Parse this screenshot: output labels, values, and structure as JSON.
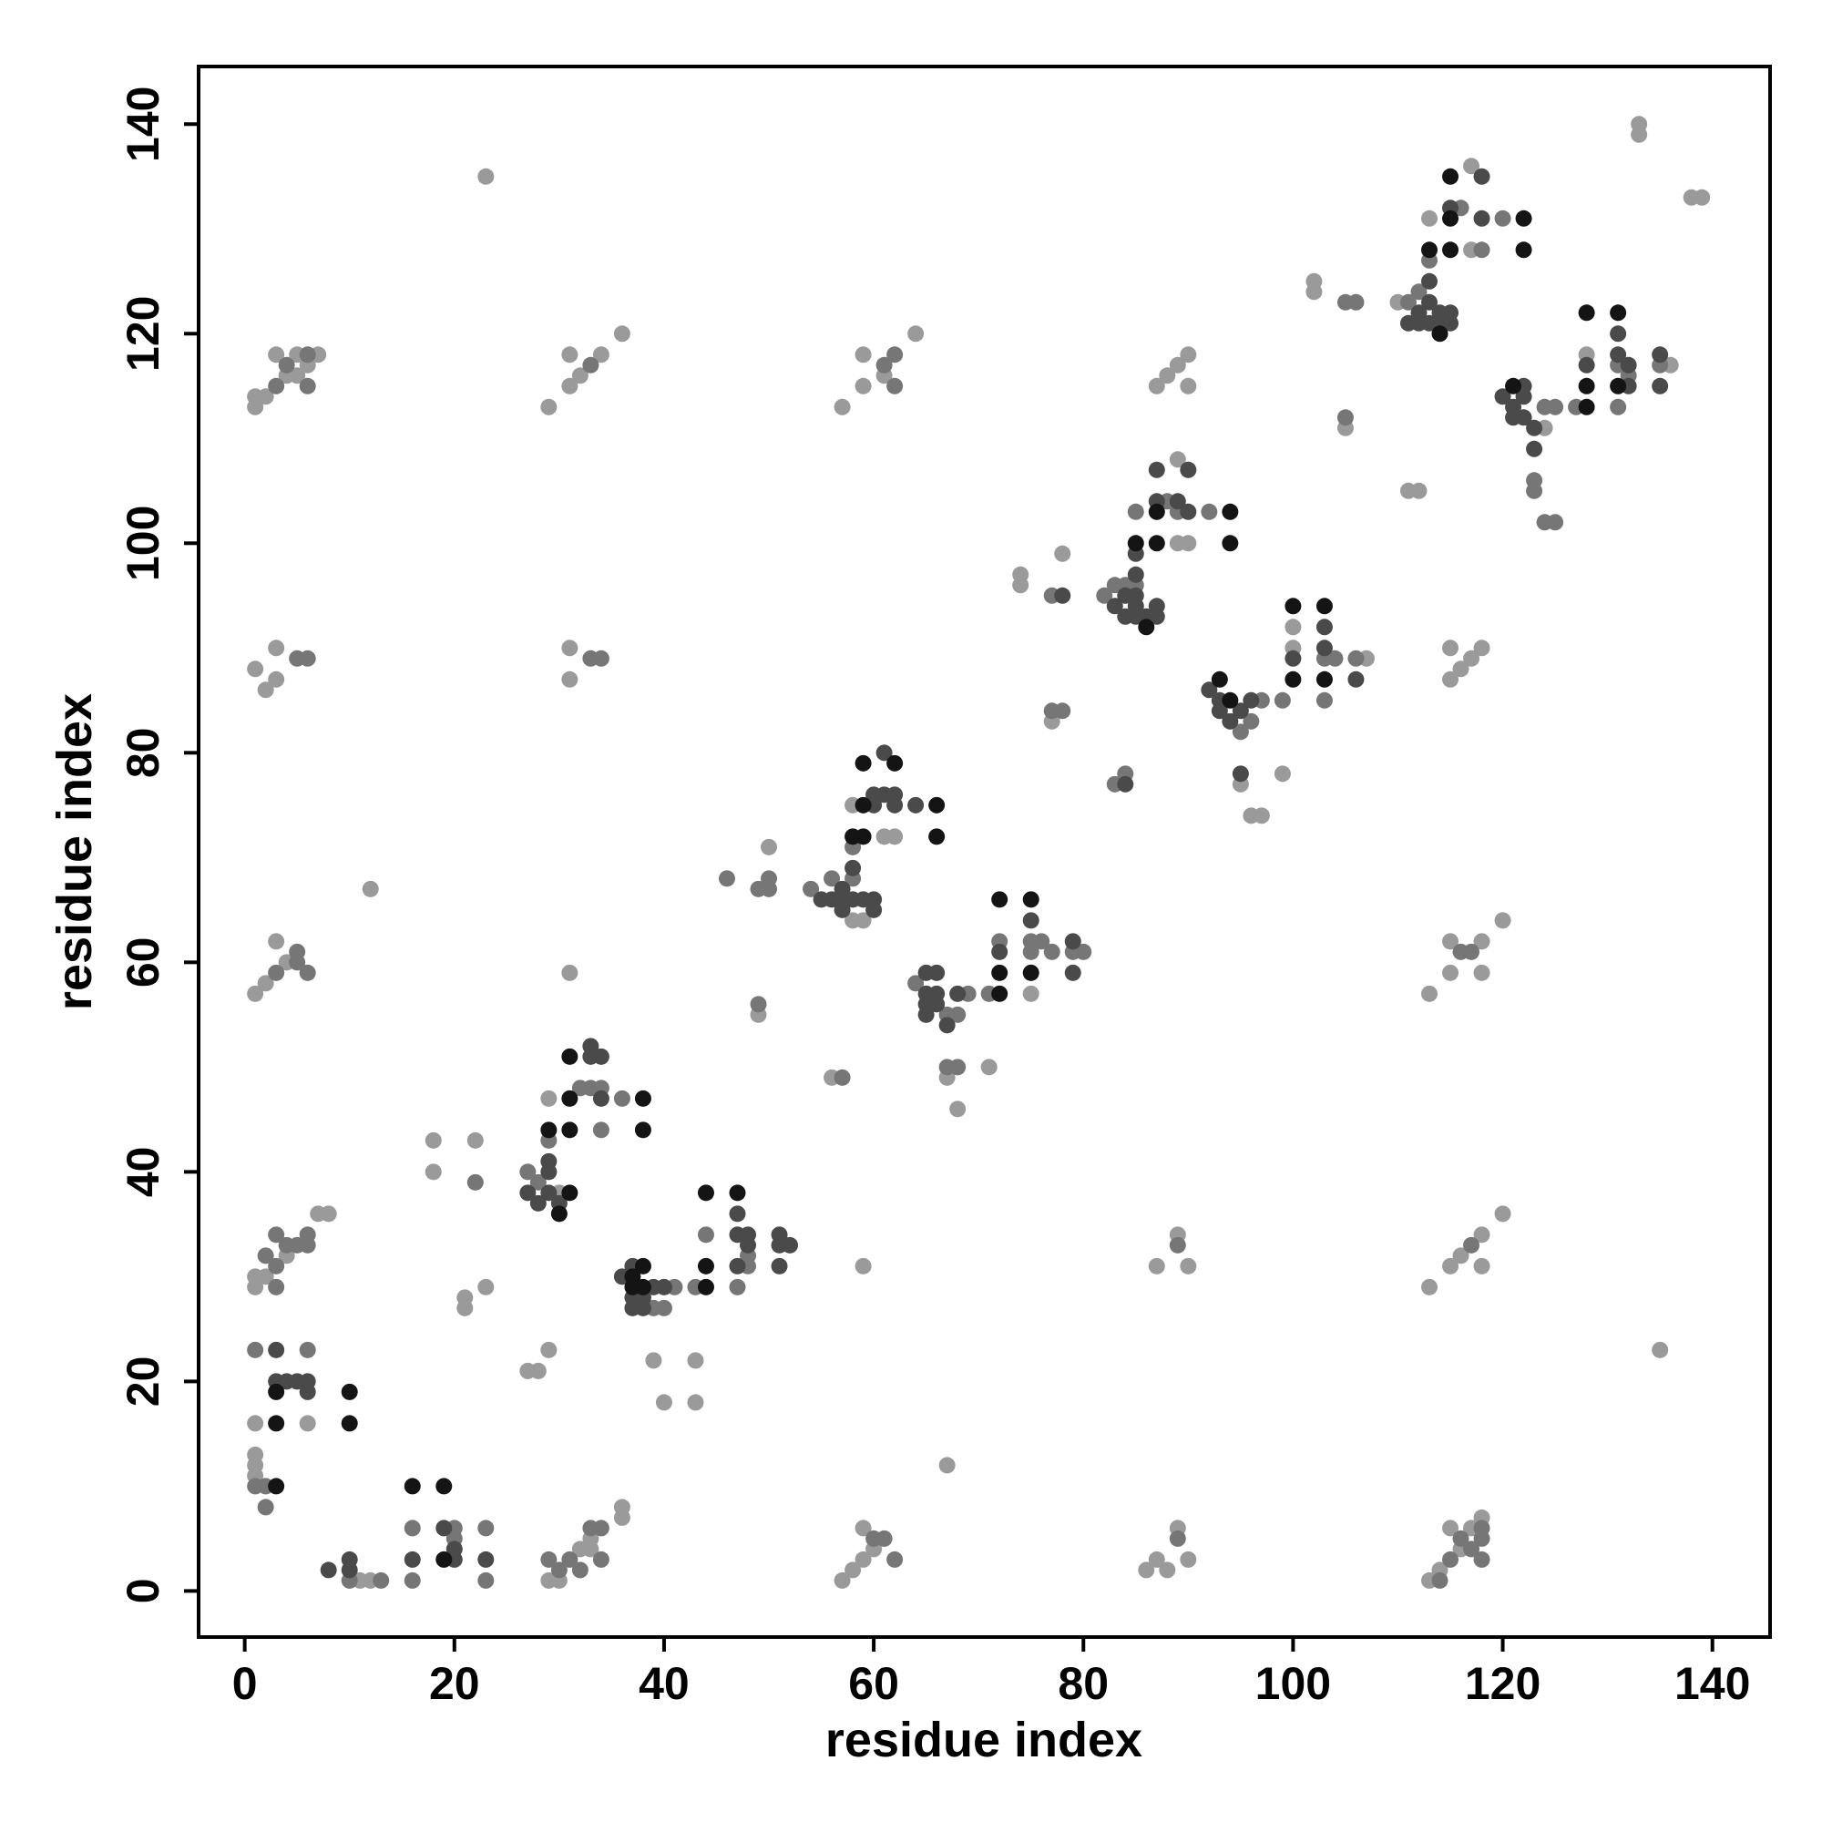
{
  "chart_data": {
    "type": "scatter",
    "xlabel": "residue index",
    "ylabel": "residue index",
    "xlim": [
      -4.4,
      145.5
    ],
    "ylim": [
      -4.4,
      145.5
    ],
    "xticks": [
      0,
      20,
      40,
      60,
      80,
      100,
      120,
      140
    ],
    "yticks": [
      0,
      20,
      40,
      60,
      80,
      100,
      120,
      140
    ],
    "series": [
      {
        "color": "#9a9a9a",
        "x": [
          1,
          1,
          1,
          11,
          12,
          1,
          2,
          3,
          4,
          1,
          2,
          3,
          3,
          1,
          1,
          2,
          3,
          4,
          5,
          5,
          6,
          7,
          23,
          12,
          29,
          31,
          31,
          32,
          34,
          36,
          31,
          31,
          31,
          1,
          2,
          4,
          7,
          8,
          18,
          18,
          22,
          21,
          21,
          23,
          27,
          28,
          29,
          29,
          30,
          32,
          33,
          33,
          36,
          40,
          43,
          57,
          58,
          59,
          60,
          59,
          57,
          59,
          59,
          61,
          64,
          59,
          67,
          86,
          87,
          88,
          89,
          90,
          87,
          89,
          90,
          87,
          88,
          89,
          90,
          90,
          113,
          114,
          115,
          116,
          117,
          118,
          113,
          115,
          115,
          118,
          118,
          120,
          113,
          115,
          116,
          118,
          118,
          120,
          115,
          115,
          116,
          117,
          118,
          133,
          133,
          138,
          139,
          135,
          102,
          102,
          110,
          111,
          112,
          105,
          89,
          89,
          90,
          74,
          74,
          78,
          77,
          99,
          100,
          100,
          96,
          97,
          95,
          75,
          117,
          117,
          113,
          136,
          128,
          124,
          58,
          59,
          58,
          61,
          62,
          67,
          68,
          71,
          49,
          50,
          56,
          29,
          30,
          43,
          39,
          36,
          1,
          1,
          6,
          107
        ],
        "values": [
          13,
          12,
          11,
          1,
          1,
          57,
          58,
          62,
          60,
          88,
          86,
          90,
          87,
          114,
          113,
          114,
          118,
          116,
          116,
          118,
          117,
          118,
          135,
          67,
          113,
          115,
          118,
          116,
          118,
          120,
          87,
          90,
          59,
          30,
          30,
          32,
          36,
          36,
          43,
          40,
          43,
          28,
          27,
          29,
          21,
          21,
          23,
          1,
          1,
          4,
          4,
          5,
          7,
          18,
          22,
          1,
          2,
          3,
          4,
          6,
          113,
          115,
          118,
          116,
          120,
          31,
          12,
          2,
          3,
          2,
          6,
          3,
          31,
          34,
          31,
          115,
          116,
          117,
          118,
          115,
          1,
          2,
          6,
          4,
          6,
          7,
          57,
          59,
          62,
          62,
          59,
          64,
          29,
          31,
          32,
          34,
          31,
          36,
          87,
          90,
          88,
          89,
          90,
          140,
          139,
          133,
          133,
          23,
          125,
          124,
          123,
          105,
          105,
          111,
          108,
          100,
          100,
          96,
          97,
          99,
          83,
          78,
          92,
          90,
          74,
          74,
          77,
          57,
          136,
          128,
          131,
          117,
          118,
          111,
          64,
          64,
          75,
          72,
          72,
          49,
          46,
          50,
          55,
          71,
          49,
          47,
          38,
          18,
          22,
          8,
          16,
          29,
          16,
          89
        ]
      },
      {
        "color": "#767676",
        "x": [
          1,
          6,
          1,
          2,
          2,
          10,
          13,
          16,
          16,
          20,
          20,
          23,
          23,
          3,
          3,
          2,
          3,
          4,
          5,
          6,
          6,
          22,
          29,
          31,
          30,
          32,
          34,
          33,
          34,
          36,
          34,
          60,
          61,
          62,
          61,
          62,
          62,
          89,
          89,
          114,
          115,
          116,
          117,
          118,
          118,
          118,
          116,
          117,
          117,
          3,
          5,
          5,
          6,
          5,
          6,
          3,
          4,
          6,
          6,
          33,
          33,
          34,
          46,
          49,
          50,
          50,
          49,
          57,
          47,
          43,
          44,
          40,
          39,
          41,
          48,
          48,
          67,
          68,
          71,
          72,
          75,
          75,
          76,
          77,
          80,
          79,
          77,
          77,
          78,
          83,
          84,
          99,
          103,
          103,
          104,
          106,
          105,
          106,
          105,
          85,
          88,
          89,
          92,
          82,
          83,
          84,
          85,
          97,
          96,
          95,
          123,
          123,
          124,
          125,
          124,
          125,
          127,
          131,
          131,
          132,
          135,
          112,
          113,
          118,
          120,
          116,
          111,
          58,
          58,
          54,
          56,
          64,
          68,
          69,
          67,
          28,
          27,
          29,
          33,
          34,
          32
        ],
        "values": [
          23,
          23,
          10,
          10,
          8,
          1,
          1,
          6,
          1,
          6,
          5,
          6,
          1,
          29,
          31,
          32,
          34,
          33,
          33,
          34,
          33,
          39,
          3,
          3,
          2,
          2,
          6,
          6,
          3,
          47,
          44,
          5,
          5,
          3,
          117,
          115,
          118,
          5,
          33,
          1,
          3,
          5,
          4,
          5,
          6,
          3,
          61,
          61,
          33,
          59,
          61,
          60,
          59,
          89,
          89,
          115,
          117,
          118,
          115,
          117,
          89,
          89,
          68,
          67,
          67,
          68,
          56,
          49,
          29,
          29,
          34,
          27,
          27,
          29,
          31,
          32,
          50,
          50,
          57,
          62,
          62,
          61,
          62,
          61,
          61,
          61,
          95,
          84,
          84,
          77,
          78,
          85,
          85,
          89,
          89,
          89,
          123,
          123,
          112,
          103,
          104,
          103,
          103,
          95,
          96,
          96,
          96,
          85,
          83,
          82,
          106,
          105,
          102,
          102,
          113,
          113,
          113,
          113,
          117,
          116,
          117,
          124,
          127,
          128,
          131,
          132,
          123,
          71,
          68,
          67,
          68,
          58,
          55,
          57,
          55,
          39,
          40,
          43,
          48,
          48,
          48
        ]
      },
      {
        "color": "#4a4a4a",
        "x": [
          3,
          4,
          5,
          6,
          3,
          6,
          16,
          19,
          20,
          20,
          23,
          8,
          10,
          10,
          27,
          28,
          29,
          29,
          29,
          30,
          33,
          34,
          33,
          34,
          36,
          37,
          37,
          38,
          39,
          40,
          37,
          38,
          47,
          47,
          48,
          48,
          47,
          51,
          51,
          52,
          51,
          55,
          56,
          57,
          57,
          57,
          58,
          58,
          59,
          60,
          60,
          60,
          60,
          61,
          61,
          62,
          62,
          64,
          65,
          65,
          65,
          65,
          66,
          66,
          66,
          67,
          68,
          72,
          75,
          79,
          79,
          78,
          84,
          83,
          84,
          84,
          85,
          85,
          85,
          85,
          86,
          87,
          87,
          87,
          87,
          89,
          90,
          90,
          92,
          93,
          93,
          94,
          95,
          96,
          95,
          100,
          103,
          103,
          106,
          111,
          112,
          112,
          113,
          113,
          113,
          114,
          114,
          115,
          115,
          115,
          118,
          118,
          120,
          121,
          121,
          122,
          122,
          122,
          123,
          123,
          128,
          131,
          131,
          132,
          132,
          135,
          135,
          85
        ],
        "values": [
          23,
          20,
          20,
          20,
          20,
          19,
          3,
          6,
          4,
          3,
          3,
          2,
          3,
          2,
          38,
          37,
          40,
          38,
          41,
          37,
          52,
          51,
          51,
          47,
          30,
          31,
          28,
          28,
          29,
          29,
          27,
          27,
          36,
          34,
          34,
          33,
          31,
          34,
          33,
          33,
          31,
          66,
          66,
          65,
          66,
          67,
          69,
          66,
          66,
          65,
          66,
          76,
          75,
          76,
          80,
          76,
          75,
          75,
          59,
          57,
          56,
          55,
          59,
          57,
          56,
          54,
          57,
          61,
          64,
          62,
          59,
          95,
          77,
          94,
          93,
          95,
          93,
          94,
          95,
          97,
          93,
          93,
          94,
          104,
          107,
          104,
          107,
          103,
          86,
          85,
          84,
          83,
          84,
          85,
          78,
          89,
          92,
          90,
          87,
          121,
          121,
          122,
          121,
          123,
          125,
          121,
          122,
          121,
          122,
          132,
          135,
          131,
          114,
          113,
          112,
          112,
          114,
          115,
          111,
          109,
          117,
          120,
          118,
          115,
          117,
          118,
          115,
          99
        ]
      },
      {
        "color": "#141414",
        "x": [
          29,
          31,
          31,
          31,
          31,
          38,
          38,
          44,
          44,
          47,
          44,
          58,
          59,
          59,
          59,
          62,
          66,
          66,
          72,
          75,
          72,
          72,
          75,
          85,
          87,
          87,
          94,
          94,
          86,
          100,
          100,
          103,
          103,
          93,
          94,
          113,
          115,
          115,
          115,
          122,
          122,
          114,
          128,
          128,
          128,
          131,
          131,
          121,
          3,
          3,
          3,
          10,
          10,
          16,
          19,
          19,
          37,
          38,
          30,
          37,
          38
        ],
        "values": [
          44,
          38,
          51,
          47,
          44,
          47,
          44,
          31,
          38,
          38,
          29,
          72,
          72,
          75,
          79,
          79,
          75,
          72,
          66,
          66,
          59,
          57,
          59,
          100,
          100,
          103,
          103,
          100,
          92,
          87,
          94,
          94,
          87,
          87,
          85,
          128,
          128,
          131,
          135,
          131,
          128,
          120,
          113,
          115,
          122,
          122,
          115,
          115,
          19,
          16,
          10,
          19,
          16,
          10,
          10,
          3,
          30,
          31,
          36,
          29,
          29
        ]
      }
    ]
  }
}
